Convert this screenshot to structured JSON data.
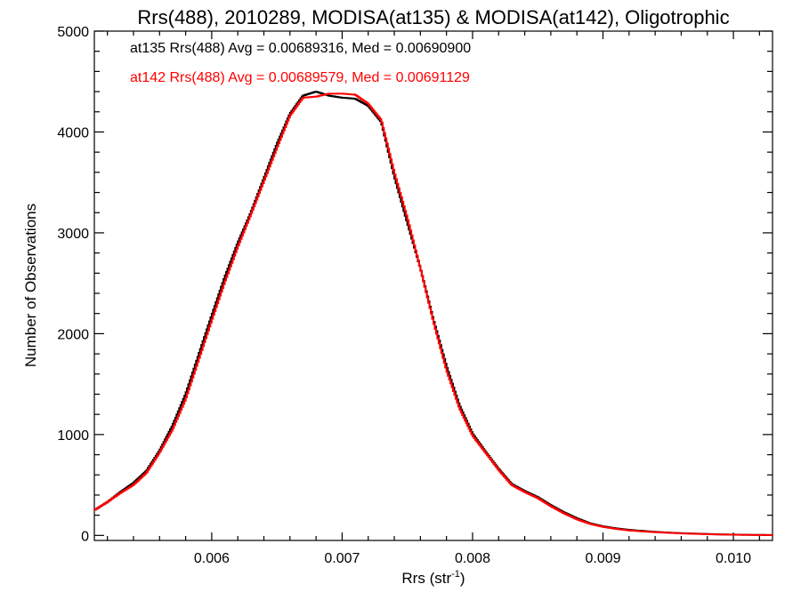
{
  "chart_data": {
    "type": "line",
    "title": "Rrs(488), 2010289, MODISA(at135) & MODISA(at142), Oligotrophic",
    "xlabel": "Rrs (str",
    "xlabel_superscript": "-1",
    "xlabel_suffix": ")",
    "ylabel": "Number of Observations",
    "xlim": [
      0.0051,
      0.0103
    ],
    "ylim": [
      -50,
      5000
    ],
    "x_ticks": [
      0.006,
      0.007,
      0.008,
      0.009,
      0.01
    ],
    "x_tick_labels": [
      "0.006",
      "0.007",
      "0.008",
      "0.009",
      "0.010"
    ],
    "y_ticks": [
      0,
      1000,
      2000,
      3000,
      4000,
      5000
    ],
    "y_tick_labels": [
      "0",
      "1000",
      "2000",
      "3000",
      "4000",
      "5000"
    ],
    "step": true,
    "grid": false,
    "annotations": [
      {
        "text": "at135 Rrs(488) Avg = 0.00689316, Med = 0.00690900",
        "color": "#000000"
      },
      {
        "text": "at142 Rrs(488) Avg = 0.00689579, Med = 0.00691129",
        "color": "#ff0000"
      }
    ],
    "x": [
      0.0051,
      0.0052,
      0.0053,
      0.0054,
      0.0055,
      0.0056,
      0.0057,
      0.0058,
      0.0059,
      0.006,
      0.0061,
      0.0062,
      0.0063,
      0.0064,
      0.0065,
      0.0066,
      0.0067,
      0.0068,
      0.0069,
      0.007,
      0.0071,
      0.0072,
      0.0073,
      0.0074,
      0.0075,
      0.0076,
      0.0077,
      0.0078,
      0.0079,
      0.008,
      0.0081,
      0.0082,
      0.0083,
      0.0084,
      0.0085,
      0.0086,
      0.0087,
      0.0088,
      0.0089,
      0.009,
      0.0091,
      0.0092,
      0.0093,
      0.0094,
      0.0095,
      0.0096,
      0.0097,
      0.0098,
      0.0099,
      0.01,
      0.0101,
      0.0102,
      0.0103
    ],
    "series": [
      {
        "name": "at135",
        "color": "#000000",
        "values": [
          250,
          330,
          430,
          520,
          640,
          840,
          1090,
          1400,
          1790,
          2180,
          2560,
          2900,
          3200,
          3540,
          3880,
          4180,
          4360,
          4400,
          4360,
          4340,
          4330,
          4260,
          4100,
          3560,
          3100,
          2650,
          2140,
          1680,
          1290,
          1010,
          830,
          660,
          510,
          440,
          380,
          300,
          230,
          170,
          120,
          90,
          70,
          55,
          45,
          35,
          28,
          22,
          18,
          14,
          10,
          8,
          6,
          5,
          4
        ]
      },
      {
        "name": "at142",
        "color": "#ff0000",
        "values": [
          250,
          330,
          420,
          500,
          620,
          820,
          1050,
          1350,
          1740,
          2130,
          2510,
          2860,
          3180,
          3510,
          3840,
          4160,
          4340,
          4350,
          4380,
          4380,
          4370,
          4280,
          4120,
          3600,
          3150,
          2650,
          2120,
          1640,
          1260,
          990,
          820,
          650,
          500,
          430,
          370,
          290,
          220,
          160,
          115,
          85,
          65,
          50,
          40,
          32,
          26,
          20,
          16,
          12,
          9,
          7,
          5,
          4,
          3
        ]
      }
    ]
  }
}
